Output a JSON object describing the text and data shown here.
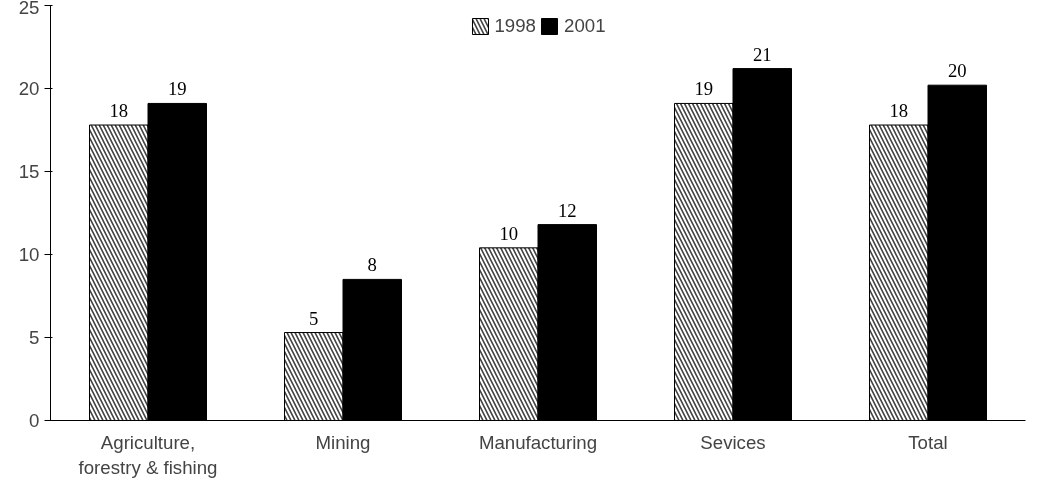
{
  "chart_data": {
    "type": "bar",
    "categories": [
      "Agriculture, forestry & fishing",
      "Mining",
      "Manufacturing",
      "Sevices",
      "Total"
    ],
    "series": [
      {
        "name": "1998",
        "color": "#404040",
        "values": [
          17.8,
          5.3,
          10.4,
          19.1,
          17.8
        ],
        "value_labels": [
          "18",
          "5",
          "10",
          "19",
          "18"
        ]
      },
      {
        "name": "2001",
        "color": "#000000",
        "values": [
          19.1,
          8.5,
          11.8,
          21.2,
          20.2
        ],
        "value_labels": [
          "19",
          "8",
          "12",
          "21",
          "20"
        ]
      }
    ],
    "ylim": [
      0,
      25
    ],
    "yticks": [
      0,
      5,
      10,
      15,
      20,
      25
    ],
    "grid": false,
    "legend": "top"
  }
}
